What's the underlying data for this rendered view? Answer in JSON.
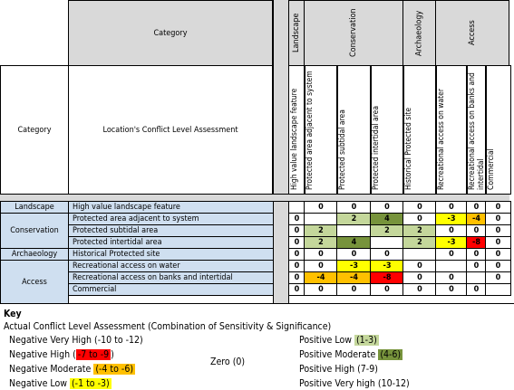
{
  "title_category": "Category",
  "title_category_left": "Category",
  "assessment_title": "Location's Conflict Level Assessment",
  "groups": [
    {
      "label": "Landscape"
    },
    {
      "label": "Conservation"
    },
    {
      "label": "Archaeology"
    },
    {
      "label": "Access"
    }
  ],
  "columns": [
    "High value landscape feature",
    "Protected area adjacent to system",
    "Protected subtidal area",
    "Protected intertidal area",
    "Historical Protected site",
    "Recreational access on water",
    "Recreational access on banks and intertidal",
    "Commercial"
  ],
  "row_groups": [
    "Landscape",
    "Conservation",
    "Archaeology",
    "Access"
  ],
  "rows": [
    {
      "label": "High value landscape feature",
      "cells": [
        "",
        "0",
        "0",
        "0",
        "0",
        "0",
        "0",
        "0"
      ]
    },
    {
      "label": "Protected area adjacent to system",
      "cells": [
        "0",
        "",
        "2",
        "4",
        "0",
        "-3",
        "-4",
        "0"
      ]
    },
    {
      "label": "Protected subtidal area",
      "cells": [
        "0",
        "2",
        "",
        "2",
        "2",
        "0",
        "0",
        "0"
      ]
    },
    {
      "label": "Protected intertidal area",
      "cells": [
        "0",
        "2",
        "4",
        "",
        "2",
        "-3",
        "-8",
        "0"
      ]
    },
    {
      "label": "Historical Protected site",
      "cells": [
        "0",
        "0",
        "0",
        "0",
        "",
        "0",
        "0",
        "0"
      ]
    },
    {
      "label": "Recreational access on water",
      "cells": [
        "0",
        "0",
        "-3",
        "-3",
        "0",
        "",
        "0",
        "0"
      ]
    },
    {
      "label": "Recreational access on banks and intertidal",
      "cells": [
        "0",
        "-4",
        "-4",
        "-8",
        "0",
        "0",
        "",
        "0"
      ]
    },
    {
      "label": "Commercial",
      "cells": [
        "0",
        "0",
        "0",
        "0",
        "0",
        "0",
        "0",
        ""
      ]
    }
  ],
  "colors": {
    "grey": "#d9d9d9",
    "blue": "#cfdff0",
    "green_light": "#c4d79b",
    "green_mid": "#77933c",
    "yellow": "#ffff00",
    "orange": "#ffc000",
    "red": "#ff0000"
  },
  "key": {
    "heading": "Key",
    "subtitle": "Actual Conflict Level Assessment (Combination of Sensitivity & Significance)",
    "neg_very_high": "Negative Very High (-10 to -12)",
    "neg_high_a": "Negative High (",
    "neg_high_range": "-7 to -9",
    "neg_high_b": ")",
    "neg_mod_a": "Negative Moderate ",
    "neg_mod_range": "(-4 to -6)",
    "neg_low_a": "Negative Low ",
    "neg_low_range": "(-1 to -3)",
    "zero": "Zero (0)",
    "pos_low_a": "Positive Low ",
    "pos_low_range": "(1-3)",
    "pos_mod_a": "Positive Moderate ",
    "pos_mod_range": "(4-6)",
    "pos_high": "Positive High (7-9)",
    "pos_very_high": "Positive Very high (10-12)"
  }
}
